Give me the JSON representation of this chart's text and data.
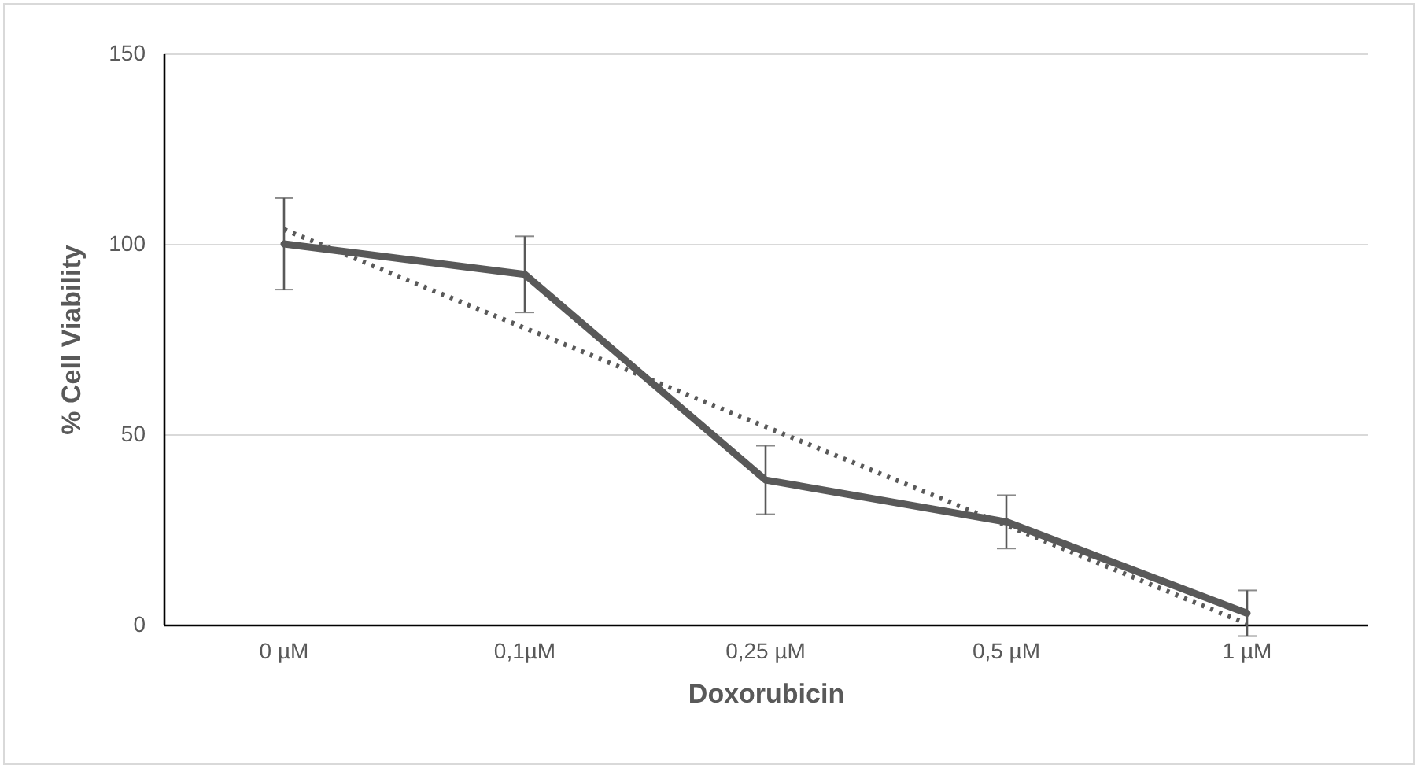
{
  "chart_data": {
    "type": "line",
    "xlabel": "Doxorubicin",
    "ylabel": "% Cell Viability",
    "categories": [
      "0 µM",
      "0,1µM",
      "0,25 µM",
      "0,5 µM",
      "1 µM"
    ],
    "series": [
      {
        "color": "#595959",
        "values": [
          100,
          92,
          38,
          27,
          3
        ],
        "errors": [
          12,
          10,
          9,
          7,
          6
        ],
        "line_style": "solid"
      },
      {
        "type": "line",
        "color": "#595959",
        "x": [
          "0 µM",
          "0,1µM",
          "0,25 µM",
          "0,5 µM",
          "1 µM"
        ],
        "values": [
          103.8,
          77.9,
          52,
          26.1,
          0.2
        ],
        "line_style": "dotted"
      }
    ],
    "ylim": [
      0,
      150
    ],
    "yticks": [
      0,
      50,
      100,
      150
    ],
    "grid": "y",
    "marker": "none"
  }
}
